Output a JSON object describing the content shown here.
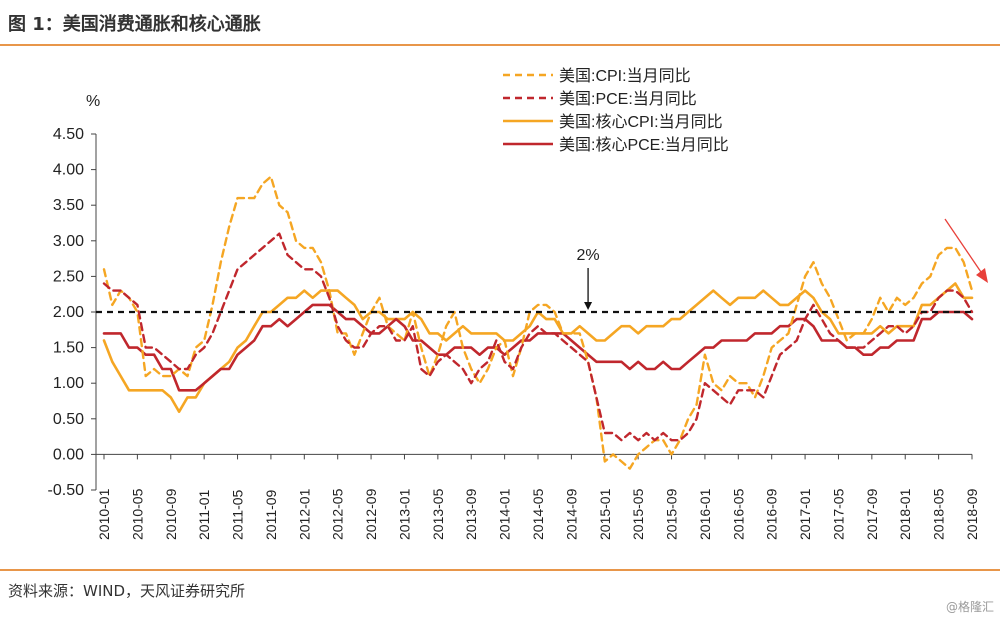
{
  "header": {
    "title": "图 1：美国消费通胀和核心通胀"
  },
  "footer": {
    "source": "资料来源：WIND，天风证券研究所",
    "watermark": "@格隆汇"
  },
  "chart_data": {
    "type": "line",
    "ylabel": "%",
    "ylim": [
      -0.5,
      4.5
    ],
    "yticks": [
      "4.50",
      "4.00",
      "3.50",
      "3.00",
      "2.50",
      "2.00",
      "1.50",
      "1.00",
      "0.50",
      "0.00",
      "-0.50"
    ],
    "ytick_values": [
      4.5,
      4.0,
      3.5,
      3.0,
      2.5,
      2.0,
      1.5,
      1.0,
      0.5,
      0.0,
      -0.5
    ],
    "x_start": "2010-01",
    "x_end": "2018-09",
    "x_ticks": [
      "2010-01",
      "2010-05",
      "2010-09",
      "2011-01",
      "2011-05",
      "2011-09",
      "2012-01",
      "2012-05",
      "2012-09",
      "2013-01",
      "2013-05",
      "2013-09",
      "2014-01",
      "2014-05",
      "2014-09",
      "2015-01",
      "2015-05",
      "2015-09",
      "2016-01",
      "2016-05",
      "2016-09",
      "2017-01",
      "2017-05",
      "2017-09",
      "2018-01",
      "2018-05",
      "2018-09"
    ],
    "reference_line": {
      "value": 2.0,
      "label": "2%",
      "label_month": "2014-11"
    },
    "legend_position": "top-center",
    "series": [
      {
        "name": "美国:CPI:当月同比",
        "color": "#f5a623",
        "dash": true,
        "values": [
          2.6,
          2.1,
          2.3,
          2.2,
          2.0,
          1.1,
          1.2,
          1.1,
          1.1,
          1.2,
          1.1,
          1.5,
          1.6,
          2.1,
          2.7,
          3.2,
          3.6,
          3.6,
          3.6,
          3.8,
          3.9,
          3.5,
          3.4,
          3.0,
          2.9,
          2.9,
          2.7,
          2.3,
          1.7,
          1.7,
          1.4,
          1.7,
          2.0,
          2.2,
          1.8,
          1.7,
          1.6,
          2.0,
          1.5,
          1.1,
          1.4,
          1.8,
          2.0,
          1.5,
          1.2,
          1.0,
          1.2,
          1.5,
          1.6,
          1.1,
          1.5,
          2.0,
          2.1,
          2.1,
          2.0,
          1.7,
          1.7,
          1.7,
          1.3,
          0.8,
          -0.1,
          0.0,
          -0.1,
          -0.2,
          0.0,
          0.1,
          0.2,
          0.2,
          0.0,
          0.2,
          0.5,
          0.7,
          1.4,
          1.0,
          0.9,
          1.1,
          1.0,
          1.0,
          0.8,
          1.1,
          1.5,
          1.6,
          1.7,
          2.1,
          2.5,
          2.7,
          2.4,
          2.2,
          1.9,
          1.6,
          1.7,
          1.7,
          1.9,
          2.2,
          2.0,
          2.2,
          2.1,
          2.2,
          2.4,
          2.5,
          2.8,
          2.9,
          2.9,
          2.7,
          2.3
        ]
      },
      {
        "name": "美国:PCE:当月同比",
        "color": "#c0272d",
        "dash": true,
        "values": [
          2.4,
          2.3,
          2.3,
          2.2,
          2.1,
          1.5,
          1.5,
          1.4,
          1.3,
          1.2,
          1.2,
          1.4,
          1.5,
          1.7,
          2.0,
          2.3,
          2.6,
          2.7,
          2.8,
          2.9,
          3.0,
          3.1,
          2.8,
          2.7,
          2.6,
          2.6,
          2.5,
          2.2,
          1.8,
          1.6,
          1.5,
          1.5,
          1.7,
          1.8,
          1.8,
          1.6,
          1.6,
          1.8,
          1.2,
          1.1,
          1.3,
          1.4,
          1.3,
          1.2,
          1.0,
          1.2,
          1.3,
          1.6,
          1.3,
          1.2,
          1.5,
          1.7,
          1.8,
          1.7,
          1.7,
          1.6,
          1.5,
          1.4,
          1.3,
          0.8,
          0.3,
          0.3,
          0.2,
          0.3,
          0.2,
          0.3,
          0.2,
          0.3,
          0.2,
          0.2,
          0.3,
          0.5,
          1.0,
          0.9,
          0.8,
          0.7,
          0.9,
          0.9,
          0.9,
          0.8,
          1.1,
          1.4,
          1.5,
          1.6,
          1.9,
          2.1,
          1.9,
          1.7,
          1.6,
          1.5,
          1.5,
          1.5,
          1.6,
          1.7,
          1.8,
          1.8,
          1.7,
          1.8,
          2.0,
          2.0,
          2.2,
          2.3,
          2.3,
          2.2,
          2.0
        ]
      },
      {
        "name": "美国:核心CPI:当月同比",
        "color": "#f5a623",
        "dash": false,
        "values": [
          1.6,
          1.3,
          1.1,
          0.9,
          0.9,
          0.9,
          0.9,
          0.9,
          0.8,
          0.6,
          0.8,
          0.8,
          1.0,
          1.1,
          1.2,
          1.3,
          1.5,
          1.6,
          1.8,
          2.0,
          2.0,
          2.1,
          2.2,
          2.2,
          2.3,
          2.2,
          2.3,
          2.3,
          2.3,
          2.2,
          2.1,
          1.9,
          2.0,
          2.0,
          1.9,
          1.9,
          1.9,
          2.0,
          1.9,
          1.7,
          1.7,
          1.6,
          1.7,
          1.8,
          1.7,
          1.7,
          1.7,
          1.7,
          1.6,
          1.6,
          1.7,
          1.8,
          2.0,
          1.9,
          1.9,
          1.7,
          1.7,
          1.8,
          1.7,
          1.6,
          1.6,
          1.7,
          1.8,
          1.8,
          1.7,
          1.8,
          1.8,
          1.8,
          1.9,
          1.9,
          2.0,
          2.1,
          2.2,
          2.3,
          2.2,
          2.1,
          2.2,
          2.2,
          2.2,
          2.3,
          2.2,
          2.1,
          2.1,
          2.2,
          2.3,
          2.2,
          2.0,
          1.9,
          1.7,
          1.7,
          1.7,
          1.7,
          1.7,
          1.8,
          1.7,
          1.8,
          1.8,
          1.8,
          2.1,
          2.1,
          2.2,
          2.3,
          2.4,
          2.2,
          2.2
        ]
      },
      {
        "name": "美国:核心PCE:当月同比",
        "color": "#c0272d",
        "dash": false,
        "values": [
          1.7,
          1.7,
          1.7,
          1.5,
          1.5,
          1.4,
          1.4,
          1.2,
          1.2,
          0.9,
          0.9,
          0.9,
          1.0,
          1.1,
          1.2,
          1.2,
          1.4,
          1.5,
          1.6,
          1.8,
          1.8,
          1.9,
          1.8,
          1.9,
          2.0,
          2.1,
          2.1,
          2.1,
          2.0,
          1.9,
          1.9,
          1.8,
          1.7,
          1.7,
          1.8,
          1.9,
          1.8,
          1.6,
          1.6,
          1.5,
          1.4,
          1.4,
          1.5,
          1.5,
          1.5,
          1.4,
          1.5,
          1.5,
          1.4,
          1.5,
          1.6,
          1.6,
          1.7,
          1.7,
          1.7,
          1.7,
          1.6,
          1.5,
          1.4,
          1.3,
          1.3,
          1.3,
          1.3,
          1.2,
          1.3,
          1.2,
          1.2,
          1.3,
          1.2,
          1.2,
          1.3,
          1.4,
          1.5,
          1.5,
          1.6,
          1.6,
          1.6,
          1.6,
          1.7,
          1.7,
          1.7,
          1.8,
          1.8,
          1.9,
          1.9,
          1.8,
          1.6,
          1.6,
          1.6,
          1.5,
          1.5,
          1.4,
          1.4,
          1.5,
          1.5,
          1.6,
          1.6,
          1.6,
          1.9,
          1.9,
          2.0,
          2.0,
          2.0,
          2.0,
          1.9
        ]
      }
    ]
  }
}
